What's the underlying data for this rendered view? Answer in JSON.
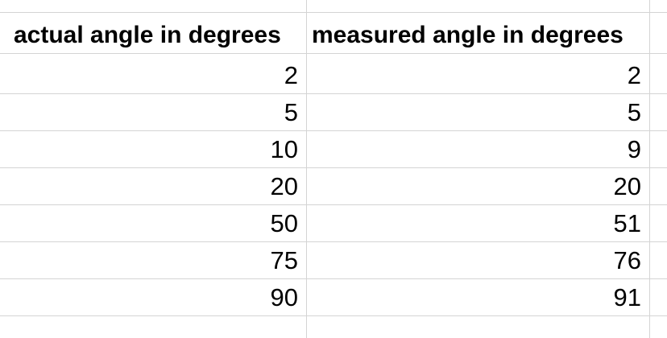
{
  "sheet": {
    "headers": [
      "actual angle in degrees",
      "measured angle in degrees"
    ],
    "rows": [
      [
        "2",
        "2"
      ],
      [
        "5",
        "5"
      ],
      [
        "10",
        "9"
      ],
      [
        "20",
        "20"
      ],
      [
        "50",
        "51"
      ],
      [
        "75",
        "76"
      ],
      [
        "90",
        "91"
      ]
    ]
  }
}
